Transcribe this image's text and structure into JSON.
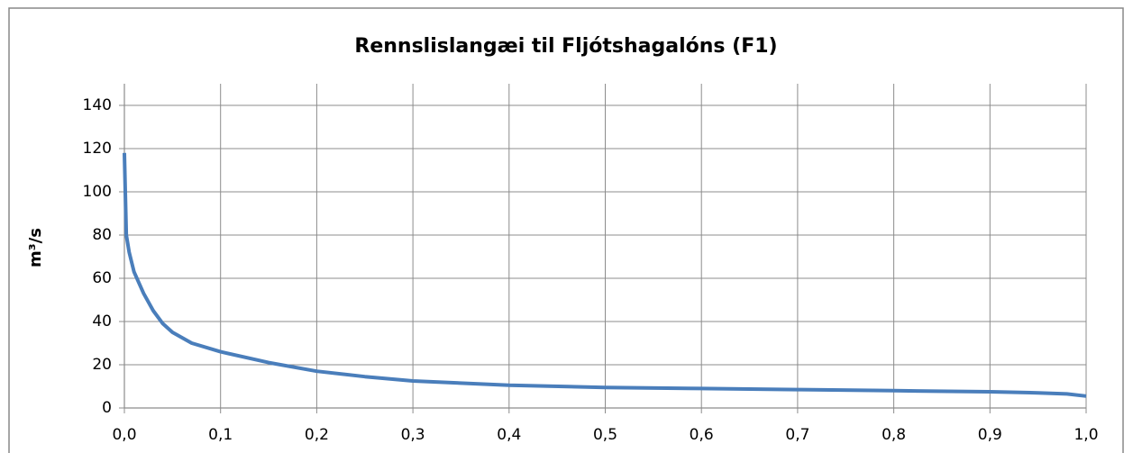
{
  "chart_data": {
    "type": "line",
    "title": "Rennslislangæi til Fljótshagalóns (F1)",
    "y_label": "m³/s",
    "x": [
      0,
      0.002,
      0.005,
      0.01,
      0.02,
      0.03,
      0.04,
      0.05,
      0.07,
      0.1,
      0.15,
      0.2,
      0.25,
      0.3,
      0.4,
      0.5,
      0.6,
      0.7,
      0.8,
      0.9,
      0.95,
      0.98,
      1.0
    ],
    "series": [
      {
        "name": "F1",
        "color": "#4a7ebb",
        "values": [
          118,
          80,
          72,
          63,
          53,
          45,
          39,
          35,
          30,
          26,
          21,
          17,
          14.5,
          12.5,
          10.5,
          9.5,
          9,
          8.5,
          8,
          7.5,
          7,
          6.5,
          5.5
        ]
      }
    ],
    "xlim": [
      0,
      1
    ],
    "xticks": [
      {
        "value": 0,
        "label": "0,0"
      },
      {
        "value": 0.1,
        "label": "0,1"
      },
      {
        "value": 0.2,
        "label": "0,2"
      },
      {
        "value": 0.3,
        "label": "0,3"
      },
      {
        "value": 0.4,
        "label": "0,4"
      },
      {
        "value": 0.5,
        "label": "0,5"
      },
      {
        "value": 0.6,
        "label": "0,6"
      },
      {
        "value": 0.7,
        "label": "0,7"
      },
      {
        "value": 0.8,
        "label": "0,8"
      },
      {
        "value": 0.9,
        "label": "0,9"
      },
      {
        "value": 1,
        "label": "1,0"
      }
    ],
    "ylim": [
      0,
      150
    ],
    "yticks": [
      0,
      20,
      40,
      60,
      80,
      100,
      120,
      140
    ],
    "grid": true
  }
}
